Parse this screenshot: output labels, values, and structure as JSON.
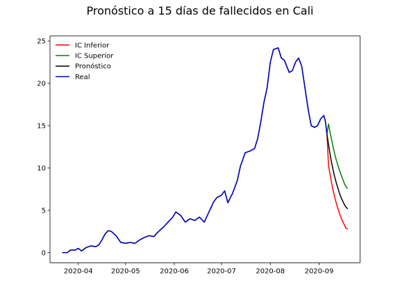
{
  "chart_data": {
    "type": "line",
    "title": "Pronóstico a 15 días de fallecidos en Cali",
    "xlabel": "",
    "ylabel": "",
    "x_axis": {
      "type": "date",
      "range": [
        "2020-03-14",
        "2020-09-27"
      ],
      "ticks": [
        "2020-04-01",
        "2020-05-01",
        "2020-06-01",
        "2020-07-01",
        "2020-08-01",
        "2020-09-01"
      ],
      "tick_labels": [
        "2020-04",
        "2020-05",
        "2020-06",
        "2020-07",
        "2020-08",
        "2020-09"
      ]
    },
    "y_axis": {
      "range": [
        -1.2,
        25.6
      ],
      "ticks": [
        0,
        5,
        10,
        15,
        20,
        25
      ],
      "tick_labels": [
        "0",
        "5",
        "10",
        "15",
        "20",
        "25"
      ]
    },
    "grid": false,
    "legend": {
      "position": "top-left"
    },
    "series": [
      {
        "name": "IC Inferior",
        "color": "#ff0000",
        "points": [
          [
            "2020-09-06",
            14.0
          ],
          [
            "2020-09-07",
            10.3
          ],
          [
            "2020-09-08",
            9.2
          ],
          [
            "2020-09-09",
            8.2
          ],
          [
            "2020-09-10",
            7.3
          ],
          [
            "2020-09-11",
            6.5
          ],
          [
            "2020-09-12",
            5.8
          ],
          [
            "2020-09-13",
            5.2
          ],
          [
            "2020-09-14",
            4.6
          ],
          [
            "2020-09-15",
            4.1
          ],
          [
            "2020-09-16",
            3.7
          ],
          [
            "2020-09-17",
            3.3
          ],
          [
            "2020-09-18",
            2.9
          ],
          [
            "2020-09-19",
            2.8
          ]
        ]
      },
      {
        "name": "IC Superior",
        "color": "#008000",
        "points": [
          [
            "2020-09-06",
            14.0
          ],
          [
            "2020-09-07",
            15.2
          ],
          [
            "2020-09-08",
            14.2
          ],
          [
            "2020-09-09",
            13.3
          ],
          [
            "2020-09-10",
            12.4
          ],
          [
            "2020-09-11",
            11.6
          ],
          [
            "2020-09-12",
            10.9
          ],
          [
            "2020-09-13",
            10.3
          ],
          [
            "2020-09-14",
            9.7
          ],
          [
            "2020-09-15",
            9.2
          ],
          [
            "2020-09-16",
            8.7
          ],
          [
            "2020-09-17",
            8.2
          ],
          [
            "2020-09-18",
            7.8
          ],
          [
            "2020-09-19",
            7.6
          ]
        ]
      },
      {
        "name": "Pronóstico",
        "color": "#000000",
        "points": [
          [
            "2020-03-22",
            0.0
          ],
          [
            "2020-03-25",
            0.0
          ],
          [
            "2020-03-27",
            0.3
          ],
          [
            "2020-03-30",
            0.3
          ],
          [
            "2020-04-01",
            0.5
          ],
          [
            "2020-04-03",
            0.2
          ],
          [
            "2020-04-06",
            0.6
          ],
          [
            "2020-04-09",
            0.8
          ],
          [
            "2020-04-12",
            0.7
          ],
          [
            "2020-04-14",
            0.9
          ],
          [
            "2020-04-16",
            1.5
          ],
          [
            "2020-04-18",
            2.2
          ],
          [
            "2020-04-20",
            2.6
          ],
          [
            "2020-04-22",
            2.5
          ],
          [
            "2020-04-25",
            2.0
          ],
          [
            "2020-04-28",
            1.2
          ],
          [
            "2020-05-01",
            1.1
          ],
          [
            "2020-05-04",
            1.2
          ],
          [
            "2020-05-07",
            1.1
          ],
          [
            "2020-05-10",
            1.5
          ],
          [
            "2020-05-13",
            1.8
          ],
          [
            "2020-05-16",
            2.0
          ],
          [
            "2020-05-19",
            1.9
          ],
          [
            "2020-05-22",
            2.5
          ],
          [
            "2020-05-25",
            3.0
          ],
          [
            "2020-05-28",
            3.6
          ],
          [
            "2020-05-31",
            4.2
          ],
          [
            "2020-06-02",
            4.8
          ],
          [
            "2020-06-05",
            4.4
          ],
          [
            "2020-06-08",
            3.6
          ],
          [
            "2020-06-11",
            4.0
          ],
          [
            "2020-06-14",
            3.8
          ],
          [
            "2020-06-17",
            4.2
          ],
          [
            "2020-06-20",
            3.6
          ],
          [
            "2020-06-23",
            4.8
          ],
          [
            "2020-06-26",
            6.0
          ],
          [
            "2020-06-28",
            6.5
          ],
          [
            "2020-07-01",
            6.8
          ],
          [
            "2020-07-03",
            7.3
          ],
          [
            "2020-07-05",
            5.9
          ],
          [
            "2020-07-08",
            7.0
          ],
          [
            "2020-07-11",
            8.5
          ],
          [
            "2020-07-13",
            10.2
          ],
          [
            "2020-07-16",
            11.8
          ],
          [
            "2020-07-19",
            12.0
          ],
          [
            "2020-07-22",
            12.3
          ],
          [
            "2020-07-24",
            13.5
          ],
          [
            "2020-07-26",
            15.5
          ],
          [
            "2020-07-28",
            17.8
          ],
          [
            "2020-07-30",
            19.5
          ],
          [
            "2020-08-01",
            22.5
          ],
          [
            "2020-08-03",
            24.0
          ],
          [
            "2020-08-06",
            24.2
          ],
          [
            "2020-08-08",
            23.0
          ],
          [
            "2020-08-10",
            22.7
          ],
          [
            "2020-08-13",
            21.3
          ],
          [
            "2020-08-15",
            21.5
          ],
          [
            "2020-08-17",
            22.5
          ],
          [
            "2020-08-19",
            23.0
          ],
          [
            "2020-08-21",
            22.0
          ],
          [
            "2020-08-23",
            19.5
          ],
          [
            "2020-08-25",
            17.0
          ],
          [
            "2020-08-27",
            15.0
          ],
          [
            "2020-08-29",
            14.8
          ],
          [
            "2020-08-31",
            15.0
          ],
          [
            "2020-09-02",
            15.8
          ],
          [
            "2020-09-04",
            16.2
          ],
          [
            "2020-09-05",
            15.5
          ],
          [
            "2020-09-06",
            14.0
          ],
          [
            "2020-09-07",
            12.8
          ],
          [
            "2020-09-08",
            11.6
          ],
          [
            "2020-09-09",
            10.6
          ],
          [
            "2020-09-10",
            9.7
          ],
          [
            "2020-09-11",
            8.9
          ],
          [
            "2020-09-12",
            8.2
          ],
          [
            "2020-09-13",
            7.6
          ],
          [
            "2020-09-14",
            7.0
          ],
          [
            "2020-09-15",
            6.5
          ],
          [
            "2020-09-16",
            6.1
          ],
          [
            "2020-09-17",
            5.7
          ],
          [
            "2020-09-18",
            5.4
          ],
          [
            "2020-09-19",
            5.2
          ]
        ]
      },
      {
        "name": "Real",
        "color": "#0000cc",
        "points": [
          [
            "2020-03-22",
            0.0
          ],
          [
            "2020-03-25",
            0.0
          ],
          [
            "2020-03-27",
            0.3
          ],
          [
            "2020-03-30",
            0.3
          ],
          [
            "2020-04-01",
            0.5
          ],
          [
            "2020-04-03",
            0.2
          ],
          [
            "2020-04-06",
            0.6
          ],
          [
            "2020-04-09",
            0.8
          ],
          [
            "2020-04-12",
            0.7
          ],
          [
            "2020-04-14",
            0.9
          ],
          [
            "2020-04-16",
            1.5
          ],
          [
            "2020-04-18",
            2.2
          ],
          [
            "2020-04-20",
            2.6
          ],
          [
            "2020-04-22",
            2.5
          ],
          [
            "2020-04-25",
            2.0
          ],
          [
            "2020-04-28",
            1.2
          ],
          [
            "2020-05-01",
            1.1
          ],
          [
            "2020-05-04",
            1.2
          ],
          [
            "2020-05-07",
            1.1
          ],
          [
            "2020-05-10",
            1.5
          ],
          [
            "2020-05-13",
            1.8
          ],
          [
            "2020-05-16",
            2.0
          ],
          [
            "2020-05-19",
            1.9
          ],
          [
            "2020-05-22",
            2.5
          ],
          [
            "2020-05-25",
            3.0
          ],
          [
            "2020-05-28",
            3.6
          ],
          [
            "2020-05-31",
            4.2
          ],
          [
            "2020-06-02",
            4.8
          ],
          [
            "2020-06-05",
            4.4
          ],
          [
            "2020-06-08",
            3.6
          ],
          [
            "2020-06-11",
            4.0
          ],
          [
            "2020-06-14",
            3.8
          ],
          [
            "2020-06-17",
            4.2
          ],
          [
            "2020-06-20",
            3.6
          ],
          [
            "2020-06-23",
            4.8
          ],
          [
            "2020-06-26",
            6.0
          ],
          [
            "2020-06-28",
            6.5
          ],
          [
            "2020-07-01",
            6.8
          ],
          [
            "2020-07-03",
            7.3
          ],
          [
            "2020-07-05",
            5.9
          ],
          [
            "2020-07-08",
            7.0
          ],
          [
            "2020-07-11",
            8.5
          ],
          [
            "2020-07-13",
            10.2
          ],
          [
            "2020-07-16",
            11.8
          ],
          [
            "2020-07-19",
            12.0
          ],
          [
            "2020-07-22",
            12.3
          ],
          [
            "2020-07-24",
            13.5
          ],
          [
            "2020-07-26",
            15.5
          ],
          [
            "2020-07-28",
            17.8
          ],
          [
            "2020-07-30",
            19.5
          ],
          [
            "2020-08-01",
            22.5
          ],
          [
            "2020-08-03",
            24.0
          ],
          [
            "2020-08-06",
            24.2
          ],
          [
            "2020-08-08",
            23.0
          ],
          [
            "2020-08-10",
            22.7
          ],
          [
            "2020-08-13",
            21.3
          ],
          [
            "2020-08-15",
            21.5
          ],
          [
            "2020-08-17",
            22.5
          ],
          [
            "2020-08-19",
            23.0
          ],
          [
            "2020-08-21",
            22.0
          ],
          [
            "2020-08-23",
            19.5
          ],
          [
            "2020-08-25",
            17.0
          ],
          [
            "2020-08-27",
            15.0
          ],
          [
            "2020-08-29",
            14.8
          ],
          [
            "2020-08-31",
            15.0
          ],
          [
            "2020-09-02",
            15.8
          ],
          [
            "2020-09-04",
            16.2
          ],
          [
            "2020-09-05",
            15.5
          ],
          [
            "2020-09-06",
            14.0
          ]
        ]
      }
    ]
  }
}
